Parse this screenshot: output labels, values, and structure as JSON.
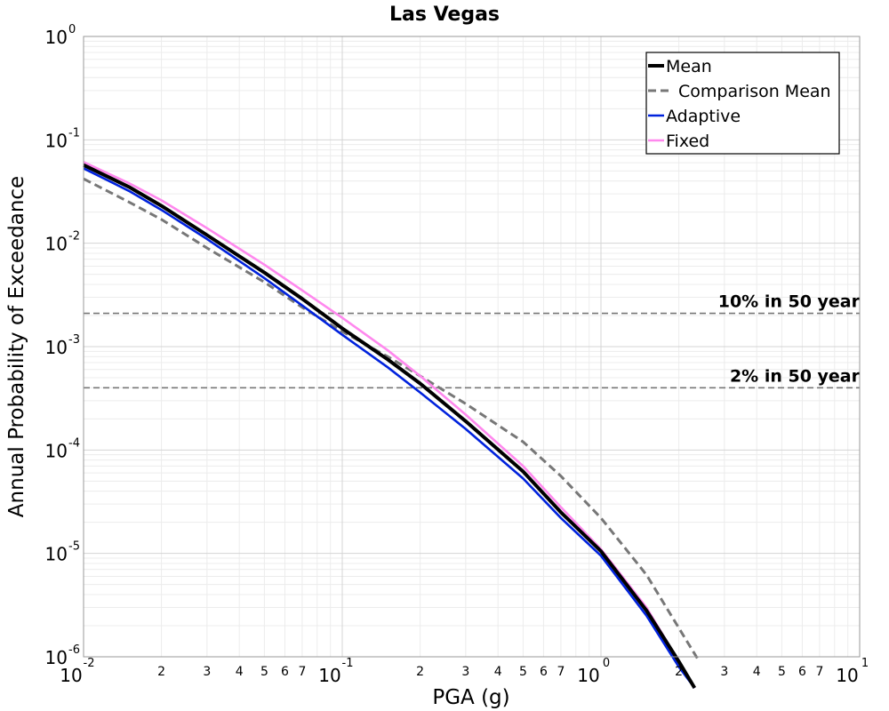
{
  "chart_data": {
    "type": "line",
    "title": "Las Vegas",
    "xlabel": "PGA (g)",
    "ylabel": "Annual Probability of Exceedance",
    "x_scale": "log",
    "y_scale": "log",
    "xlim": [
      0.01,
      10
    ],
    "ylim": [
      1e-06,
      1
    ],
    "grid": true,
    "legend_position": "top-right",
    "x_ticks": [
      {
        "value": 0.01,
        "base": "10",
        "exp": "-2"
      },
      {
        "value": 0.1,
        "base": "10",
        "exp": "-1"
      },
      {
        "value": 1,
        "base": "10",
        "exp": "0"
      },
      {
        "value": 10,
        "base": "10",
        "exp": "1"
      }
    ],
    "x_minor_labels": [
      "2",
      "3",
      "4",
      "5",
      "6",
      "7"
    ],
    "y_ticks": [
      {
        "value": 1,
        "base": "10",
        "exp": "0"
      },
      {
        "value": 0.1,
        "base": "10",
        "exp": "-1"
      },
      {
        "value": 0.01,
        "base": "10",
        "exp": "-2"
      },
      {
        "value": 0.001,
        "base": "10",
        "exp": "-3"
      },
      {
        "value": 0.0001,
        "base": "10",
        "exp": "-4"
      },
      {
        "value": 1e-05,
        "base": "10",
        "exp": "-5"
      },
      {
        "value": 1e-06,
        "base": "10",
        "exp": "-6"
      }
    ],
    "reference_lines": [
      {
        "label": "10% in 50 year",
        "y": 0.0021
      },
      {
        "label": "2% in 50 year",
        "y": 0.0004
      }
    ],
    "series": [
      {
        "name": "Mean",
        "color": "#000000",
        "dash": "solid",
        "x": [
          0.01,
          0.015,
          0.02,
          0.03,
          0.05,
          0.07,
          0.1,
          0.15,
          0.2,
          0.3,
          0.5,
          0.7,
          1.0,
          1.5,
          2.0,
          2.3
        ],
        "y": [
          0.057,
          0.035,
          0.023,
          0.012,
          0.0052,
          0.0029,
          0.0015,
          0.00075,
          0.00044,
          0.00019,
          6.2e-05,
          2.5e-05,
          1.05e-05,
          2.8e-06,
          9e-07,
          5e-07
        ]
      },
      {
        "name": "Comparison Mean",
        "color": "#777777",
        "dash": "dashed",
        "x": [
          0.01,
          0.015,
          0.02,
          0.03,
          0.05,
          0.07,
          0.1,
          0.15,
          0.2,
          0.3,
          0.5,
          0.7,
          1.0,
          1.5,
          2.0,
          2.4
        ],
        "y": [
          0.042,
          0.025,
          0.017,
          0.009,
          0.0042,
          0.0024,
          0.0014,
          0.0008,
          0.00052,
          0.00028,
          0.00012,
          5.6e-05,
          2.2e-05,
          6.2e-06,
          1.9e-06,
          9e-07
        ]
      },
      {
        "name": "Adaptive",
        "color": "#0022dd",
        "dash": "solid",
        "x": [
          0.01,
          0.015,
          0.02,
          0.03,
          0.05,
          0.07,
          0.1,
          0.15,
          0.2,
          0.3,
          0.5,
          0.7,
          1.0,
          1.5,
          2.0,
          2.3
        ],
        "y": [
          0.053,
          0.032,
          0.021,
          0.011,
          0.0046,
          0.0025,
          0.0013,
          0.00063,
          0.00036,
          0.00016,
          5.3e-05,
          2.2e-05,
          9.5e-06,
          2.5e-06,
          8e-07,
          5e-07
        ]
      },
      {
        "name": "Fixed",
        "color": "#ff88ee",
        "dash": "solid",
        "x": [
          0.01,
          0.015,
          0.02,
          0.03,
          0.05,
          0.07,
          0.1,
          0.15,
          0.2,
          0.3,
          0.5,
          0.7,
          1.0,
          1.5,
          2.0,
          2.3
        ],
        "y": [
          0.061,
          0.038,
          0.026,
          0.014,
          0.0062,
          0.0035,
          0.0019,
          0.00092,
          0.00052,
          0.00022,
          7e-05,
          2.8e-05,
          1.1e-05,
          3e-06,
          9e-07,
          5e-07
        ]
      }
    ]
  }
}
